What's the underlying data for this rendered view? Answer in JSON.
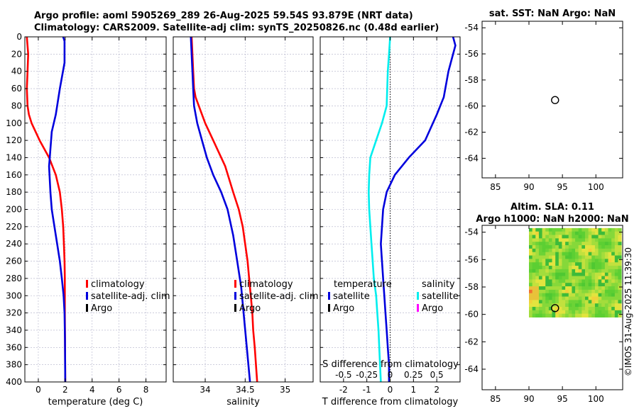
{
  "header": {
    "line1": "Argo profile: aoml 5905269_289 26-Aug-2025 59.54S 93.879E (NRT data)",
    "line2": "Climatology: CARS2009. Satellite-adj clim: synTS_20250826.nc (0.48d earlier)"
  },
  "colors": {
    "climatology": "#ff0000",
    "satellite": "#0000dd",
    "argo": "#000000",
    "salinity_sat": "#00eeee",
    "argo_sal": "#ff00ff",
    "grid": "#b0b0c8"
  },
  "chart_data": [
    {
      "id": "temperature",
      "type": "line",
      "xlabel": "temperature (deg C)",
      "ylabel": "",
      "xlim": [
        -1,
        9.5
      ],
      "ylim": [
        400,
        0
      ],
      "xticks": [
        0,
        2,
        4,
        6,
        8
      ],
      "yticks": [
        0,
        20,
        40,
        60,
        80,
        100,
        120,
        140,
        160,
        180,
        200,
        220,
        240,
        260,
        280,
        300,
        320,
        340,
        360,
        380,
        400
      ],
      "legend": [
        "climatology",
        "satellite-adj. clim",
        "Argo"
      ],
      "series": [
        {
          "name": "climatology",
          "color": "#ff0000",
          "x": [
            -0.85,
            -0.75,
            -0.8,
            -0.85,
            -0.8,
            -0.7,
            -0.5,
            0.1,
            0.8,
            1.3,
            1.6,
            1.75,
            1.85,
            1.9,
            1.95,
            1.97,
            1.97,
            1.97,
            1.98,
            1.99,
            2.0
          ],
          "y": [
            0,
            20,
            40,
            60,
            80,
            90,
            100,
            120,
            140,
            160,
            180,
            200,
            220,
            240,
            260,
            280,
            300,
            320,
            340,
            370,
            400
          ]
        },
        {
          "name": "satellite-adj. clim",
          "color": "#0000dd",
          "x": [
            1.85,
            1.95,
            1.95,
            1.6,
            1.3,
            1.0,
            0.9,
            0.85,
            0.8,
            0.9,
            1.0,
            1.2,
            1.4,
            1.6,
            1.75,
            1.88,
            1.95,
            1.98,
            2.0
          ],
          "y": [
            0,
            5,
            30,
            60,
            90,
            110,
            130,
            140,
            150,
            180,
            200,
            220,
            240,
            260,
            280,
            300,
            320,
            350,
            400
          ]
        }
      ]
    },
    {
      "id": "salinity",
      "type": "line",
      "xlabel": "salinity",
      "ylabel": "",
      "xlim": [
        33.6,
        35.35
      ],
      "ylim": [
        400,
        0
      ],
      "xticks": [
        34,
        34.5,
        35
      ],
      "legend": [
        "climatology",
        "satellite-adj. clim",
        "Argo"
      ],
      "series": [
        {
          "name": "climatology",
          "color": "#ff0000",
          "x": [
            33.83,
            33.84,
            33.85,
            33.86,
            33.88,
            33.92,
            34.0,
            34.1,
            34.25,
            34.35,
            34.42,
            34.47,
            34.5,
            34.53,
            34.55,
            34.57,
            34.59,
            34.6,
            34.62,
            34.65
          ],
          "y": [
            0,
            20,
            40,
            60,
            70,
            80,
            100,
            120,
            150,
            180,
            200,
            220,
            240,
            260,
            280,
            300,
            320,
            340,
            360,
            400
          ]
        },
        {
          "name": "satellite-adj. clim",
          "color": "#0000dd",
          "x": [
            33.82,
            33.83,
            33.84,
            33.85,
            33.86,
            33.9,
            33.96,
            34.02,
            34.1,
            34.2,
            34.28,
            34.35,
            34.4,
            34.45,
            34.48,
            34.52,
            34.56
          ],
          "y": [
            0,
            20,
            40,
            60,
            80,
            100,
            120,
            140,
            160,
            180,
            200,
            230,
            260,
            290,
            320,
            360,
            400
          ]
        }
      ]
    },
    {
      "id": "difference",
      "type": "line",
      "xlabel": "T difference from climatology",
      "top_label": "S difference from climatology",
      "xlim": [
        -3,
        3
      ],
      "ylim": [
        400,
        0
      ],
      "xticks": [
        -2,
        -1,
        0,
        1,
        2
      ],
      "s_tick_labels": [
        "-0.5",
        "-0.25",
        "0",
        "0.25",
        "0.5"
      ],
      "legend_temperature": {
        "title": "temperature",
        "items": [
          "satellite",
          "Argo"
        ]
      },
      "legend_salinity": {
        "title": "salinity",
        "items": [
          "satellite",
          "Argo"
        ]
      },
      "series": [
        {
          "name": "temperature satellite",
          "color": "#0000dd",
          "x": [
            2.7,
            2.8,
            2.5,
            2.3,
            2.0,
            1.5,
            0.8,
            0.2,
            -0.15,
            -0.3,
            -0.35,
            -0.4,
            -0.35,
            -0.3,
            -0.25,
            -0.2,
            -0.15,
            -0.1,
            -0.05,
            -0.05
          ],
          "y": [
            0,
            10,
            40,
            70,
            90,
            120,
            140,
            160,
            180,
            200,
            220,
            240,
            260,
            280,
            300,
            320,
            340,
            360,
            380,
            400
          ]
        },
        {
          "name": "salinity satellite",
          "color": "#00eeee",
          "x": [
            0.0,
            -0.05,
            -0.1,
            -0.15,
            -0.35,
            -0.6,
            -0.85,
            -0.9,
            -0.92,
            -0.9,
            -0.85,
            -0.8,
            -0.75,
            -0.7,
            -0.6,
            -0.55,
            -0.5,
            -0.45,
            -0.4
          ],
          "y": [
            0,
            20,
            40,
            80,
            100,
            120,
            140,
            160,
            180,
            200,
            220,
            240,
            260,
            280,
            300,
            320,
            340,
            370,
            400
          ]
        }
      ]
    },
    {
      "id": "sst_map",
      "type": "scatter",
      "title": "sat. SST: NaN Argo: NaN",
      "xlim": [
        83,
        104
      ],
      "ylim": [
        -65.5,
        -53.5
      ],
      "xticks": [
        85,
        90,
        95,
        100
      ],
      "yticks": [
        -54,
        -56,
        -58,
        -60,
        -62,
        -64
      ],
      "points": [
        {
          "x": 93.9,
          "y": -59.54
        }
      ]
    },
    {
      "id": "sla_map",
      "type": "heatmap",
      "title_line1": "Altim. SLA: 0.11",
      "title_line2": "Argo h1000: NaN h2000: NaN",
      "xlim": [
        83,
        104
      ],
      "ylim": [
        -65.5,
        -53.5
      ],
      "xticks": [
        85,
        90,
        95,
        100
      ],
      "yticks": [
        -54,
        -56,
        -58,
        -60,
        -62,
        -64
      ],
      "heatmap_extent": {
        "x": [
          90,
          103.8
        ],
        "y": [
          -60.2,
          -53.7
        ]
      },
      "points": [
        {
          "x": 93.9,
          "y": -59.54
        }
      ]
    }
  ],
  "footer": {
    "stamp": "©IMOS 31-Aug-2025 11:39:30"
  }
}
